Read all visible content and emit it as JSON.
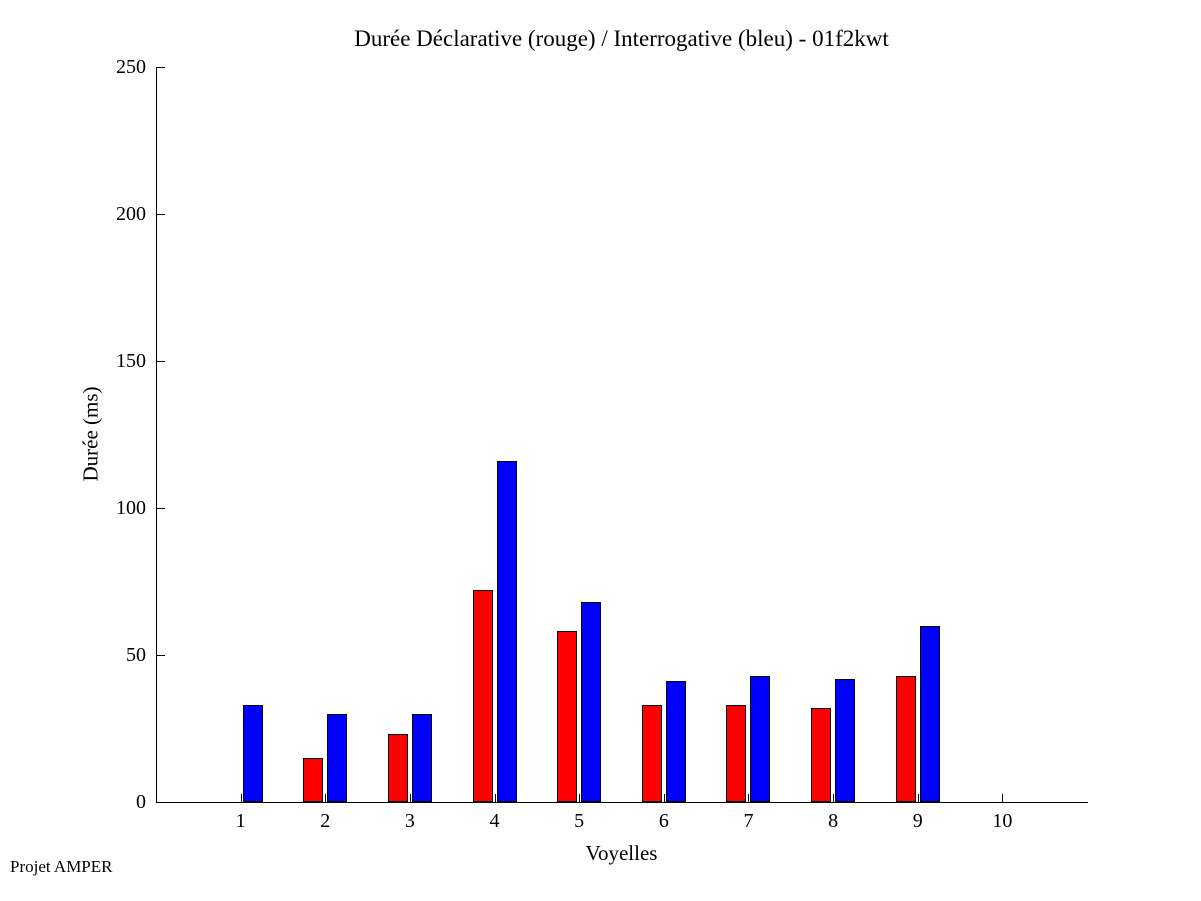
{
  "figure": {
    "footer": "Projet AMPER",
    "background_color": "#ffffff",
    "axis_color": "#000000"
  },
  "chart_data": {
    "type": "bar",
    "title": "Durée Déclarative (rouge) / Interrogative (bleu) - 01f2kwt",
    "xlabel": "Voyelles",
    "ylabel": "Durée (ms)",
    "categories": [
      1,
      2,
      3,
      4,
      5,
      6,
      7,
      8,
      9,
      10
    ],
    "series": [
      {
        "name": "Déclarative",
        "color": "#ff0000",
        "values": [
          0,
          15,
          23,
          72,
          58,
          33,
          33,
          32,
          43,
          0
        ]
      },
      {
        "name": "Interrogative",
        "color": "#0000ff",
        "values": [
          33,
          30,
          30,
          116,
          68,
          41,
          43,
          42,
          60,
          0
        ]
      }
    ],
    "xlim": [
      0,
      11
    ],
    "ylim": [
      0,
      250
    ],
    "xticks": [
      1,
      2,
      3,
      4,
      5,
      6,
      7,
      8,
      9,
      10
    ],
    "yticks": [
      0,
      50,
      100,
      150,
      200,
      250
    ],
    "grid": false,
    "legend_position": "none (encoded in title)",
    "bar_edge_color": "#000000"
  }
}
